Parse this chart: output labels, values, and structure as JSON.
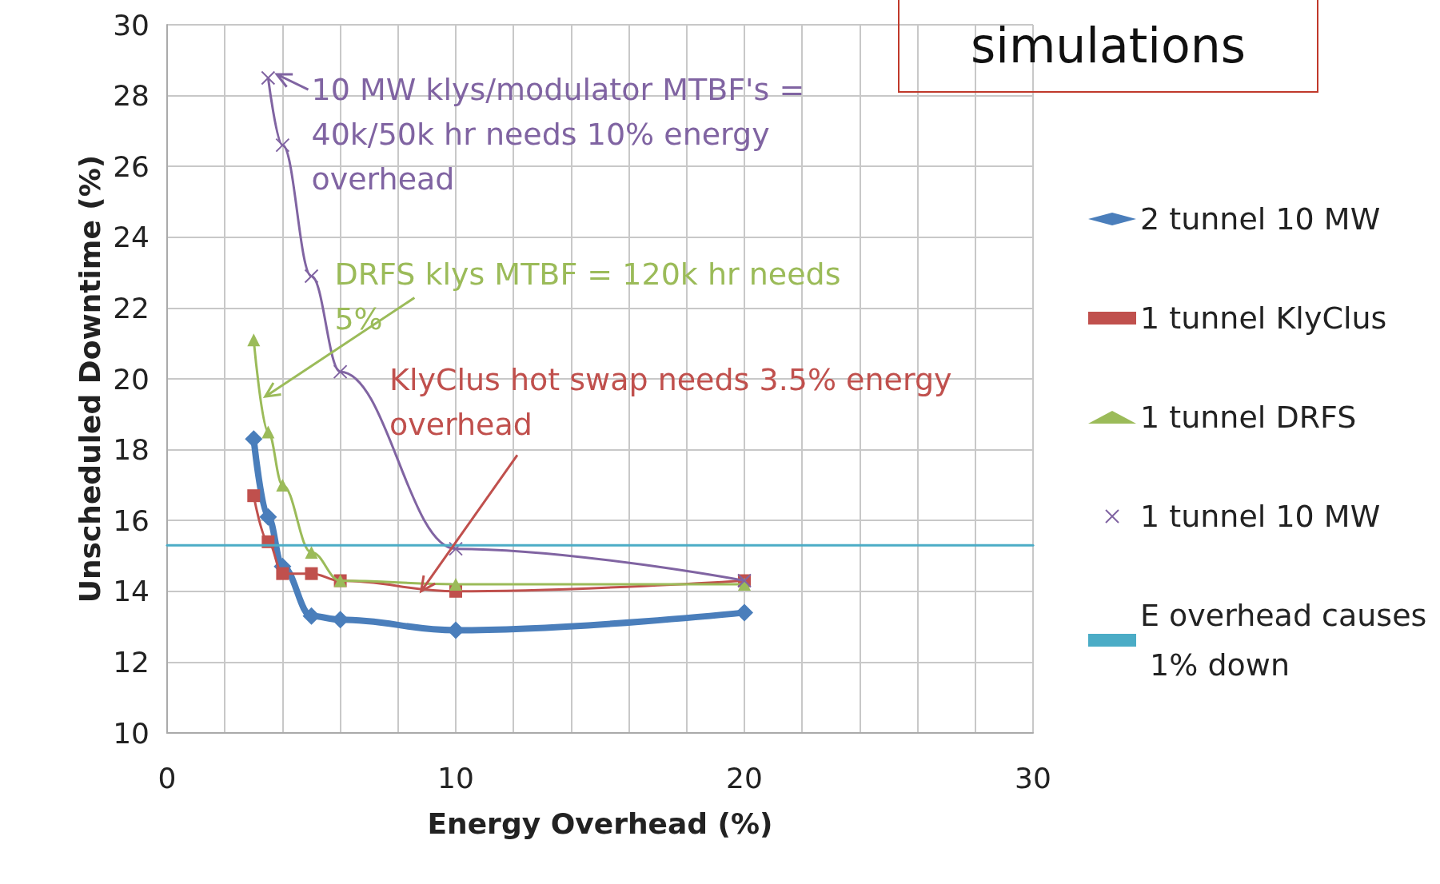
{
  "chart_data": {
    "type": "line",
    "xlabel": "Energy Overhead (%)",
    "ylabel": "Unscheduled Downtime (%)",
    "xlim": [
      0,
      30
    ],
    "ylim": [
      10,
      30
    ],
    "xticks": [
      0,
      {
        "value": 2,
        "label": null
      },
      {
        "value": 4,
        "label": null
      },
      {
        "value": 6,
        "label": null
      },
      {
        "value": 8,
        "label": null
      },
      10,
      {
        "value": 12,
        "label": null
      },
      {
        "value": 14,
        "label": null
      },
      {
        "value": 16,
        "label": null
      },
      {
        "value": 18,
        "label": null
      },
      20,
      {
        "value": 22,
        "label": null
      },
      {
        "value": 24,
        "label": null
      },
      {
        "value": 26,
        "label": null
      },
      {
        "value": 28,
        "label": null
      },
      30
    ],
    "yticks": [
      10,
      12,
      14,
      16,
      18,
      20,
      22,
      24,
      26,
      28,
      30
    ],
    "grid": true,
    "legend": "right",
    "series": [
      {
        "name": "2 tunnel 10 MW",
        "color": "#4a7ebb",
        "marker": "diamond",
        "x": [
          3,
          3.5,
          4,
          5,
          6,
          10,
          20
        ],
        "values": [
          18.3,
          16.1,
          14.7,
          13.3,
          13.2,
          12.9,
          13.4
        ]
      },
      {
        "name": "1 tunnel KlyClus",
        "color": "#c0504d",
        "marker": "square",
        "x": [
          3,
          3.5,
          4,
          5,
          6,
          10,
          20
        ],
        "values": [
          16.7,
          15.4,
          14.5,
          14.5,
          14.3,
          14.0,
          14.3
        ]
      },
      {
        "name": "1 tunnel DRFS",
        "color": "#9bbb59",
        "marker": "triangle",
        "x": [
          3,
          3.5,
          4,
          5,
          6,
          10,
          20
        ],
        "values": [
          21.1,
          18.5,
          17.0,
          15.1,
          14.3,
          14.2,
          14.2
        ]
      },
      {
        "name": "1 tunnel 10 MW",
        "color": "#8064a2",
        "marker": "cross",
        "x": [
          3.5,
          4,
          5,
          6,
          10,
          20
        ],
        "values": [
          28.5,
          26.6,
          22.9,
          20.2,
          15.2,
          14.3
        ]
      },
      {
        "name": "E overhead causes 1% down",
        "color": "#4bacc6",
        "marker": "none",
        "x": [
          0,
          30
        ],
        "values": [
          15.3,
          15.3
        ]
      }
    ],
    "annotations": [
      {
        "text": "10 MW klys/modulator MTBF's = 40k/50k hr needs 10% energy overhead",
        "x": 3.8,
        "y": 28.6
      },
      {
        "text": "DRFS klys MTBF = 120k hr needs 5%",
        "x": 3.4,
        "y": 19.5
      },
      {
        "text": "KlyClus  hot swap needs 3.5% energy overhead",
        "x": 8.8,
        "y": 14.0
      },
      "simulations"
    ]
  }
}
